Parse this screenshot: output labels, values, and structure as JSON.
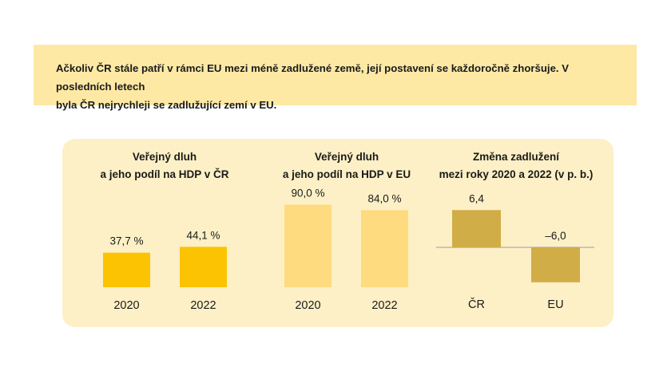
{
  "banner": {
    "line1": "Ačkoliv ČR stále patří v rámci EU mezi méně zadlužené země, její postavení se každoročně zhoršuje. V posledních letech",
    "line2": "byla ČR nejrychleji se zadlužující zemí v EU."
  },
  "colors": {
    "banner_bg": "#fde9a4",
    "panel_bg": "#fdf0c6",
    "cz_bar": "#fbc301",
    "eu_bar": "#fddb7e",
    "change_bar": "#d1ad48"
  },
  "chart_data": [
    {
      "type": "bar",
      "title_line1": "Veřejný dluh",
      "title_line2": "a jeho podíl na HDP v ČR",
      "categories": [
        "2020",
        "2022"
      ],
      "values": [
        37.7,
        44.1
      ],
      "value_labels": [
        "37,7 %",
        "44,1 %"
      ],
      "ylim": [
        0,
        100
      ]
    },
    {
      "type": "bar",
      "title_line1": "Veřejný dluh",
      "title_line2": "a jeho podíl na HDP v EU",
      "categories": [
        "2020",
        "2022"
      ],
      "values": [
        90.0,
        84.0
      ],
      "value_labels": [
        "90,0 %",
        "84,0 %"
      ],
      "ylim": [
        0,
        100
      ]
    },
    {
      "type": "bar",
      "title_line1": "Změna zadlužení",
      "title_line2": "mezi roky 2020 a 2022 (v p. b.)",
      "categories": [
        "ČR",
        "EU"
      ],
      "values": [
        6.4,
        -6.0
      ],
      "value_labels": [
        "6,4",
        "–6,0"
      ],
      "ylim": [
        -6.0,
        6.4
      ]
    }
  ]
}
